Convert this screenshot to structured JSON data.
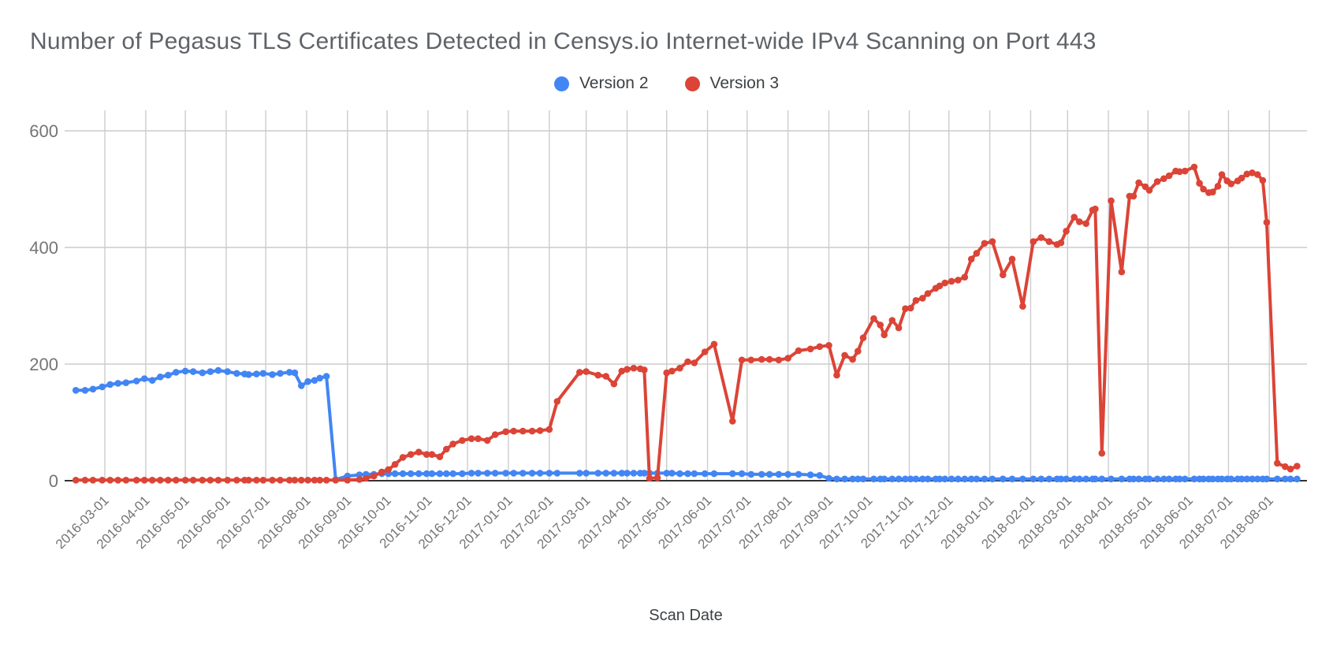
{
  "title": "Number of Pegasus TLS Certificates Detected in Censys.io Internet-wide IPv4 Scanning on Port 443",
  "legend": [
    {
      "label": "Version 2",
      "color": "#4285F4"
    },
    {
      "label": "Version 3",
      "color": "#DB4437"
    }
  ],
  "colors": {
    "gridline": "#cccccc",
    "axis_line": "#333333",
    "tick_label": "#757575",
    "title_text": "#5f6368",
    "axis_title_text": "#3c4043"
  },
  "chart_data": {
    "type": "line",
    "title": "Number of Pegasus TLS Certificates Detected in Censys.io Internet-wide IPv4 Scanning on Port 443",
    "xlabel": "Scan Date",
    "ylabel": "",
    "ylim": [
      0,
      600
    ],
    "yticks": [
      0,
      200,
      400,
      600
    ],
    "grid": true,
    "legend_position": "top-center",
    "xticks": [
      "2016-03-01",
      "2016-04-01",
      "2016-05-01",
      "2016-06-01",
      "2016-07-01",
      "2016-08-01",
      "2016-09-01",
      "2016-10-01",
      "2016-11-01",
      "2016-12-01",
      "2017-01-01",
      "2017-02-01",
      "2017-03-01",
      "2017-04-01",
      "2017-05-01",
      "2017-06-01",
      "2017-07-01",
      "2017-08-01",
      "2017-09-01",
      "2017-10-01",
      "2017-11-01",
      "2017-12-01",
      "2018-01-01",
      "2018-02-01",
      "2018-03-01",
      "2018-04-01",
      "2018-05-01",
      "2018-06-01",
      "2018-07-01",
      "2018-08-01"
    ],
    "x": [
      "2016-02-08",
      "2016-02-15",
      "2016-02-21",
      "2016-02-28",
      "2016-03-05",
      "2016-03-11",
      "2016-03-17",
      "2016-03-25",
      "2016-03-31",
      "2016-04-06",
      "2016-04-12",
      "2016-04-18",
      "2016-04-24",
      "2016-05-01",
      "2016-05-07",
      "2016-05-14",
      "2016-05-20",
      "2016-05-26",
      "2016-06-02",
      "2016-06-09",
      "2016-06-15",
      "2016-06-18",
      "2016-06-24",
      "2016-06-29",
      "2016-07-06",
      "2016-07-12",
      "2016-07-19",
      "2016-07-23",
      "2016-07-28",
      "2016-08-02",
      "2016-08-07",
      "2016-08-11",
      "2016-08-16",
      "2016-08-23",
      "2016-09-01",
      "2016-09-10",
      "2016-09-15",
      "2016-09-21",
      "2016-09-27",
      "2016-10-02",
      "2016-10-07",
      "2016-10-13",
      "2016-10-19",
      "2016-10-25",
      "2016-10-31",
      "2016-11-04",
      "2016-11-10",
      "2016-11-15",
      "2016-11-20",
      "2016-11-27",
      "2016-12-04",
      "2016-12-09",
      "2016-12-16",
      "2016-12-22",
      "2016-12-30",
      "2017-01-05",
      "2017-01-12",
      "2017-01-19",
      "2017-01-25",
      "2017-02-01",
      "2017-02-07",
      "2017-02-24",
      "2017-03-01",
      "2017-03-10",
      "2017-03-16",
      "2017-03-22",
      "2017-03-28",
      "2017-04-01",
      "2017-04-06",
      "2017-04-11",
      "2017-04-14",
      "2017-04-18",
      "2017-04-24",
      "2017-05-01",
      "2017-05-05",
      "2017-05-11",
      "2017-05-17",
      "2017-05-22",
      "2017-05-30",
      "2017-06-06",
      "2017-06-20",
      "2017-06-27",
      "2017-07-04",
      "2017-07-12",
      "2017-07-18",
      "2017-07-25",
      "2017-08-01",
      "2017-08-09",
      "2017-08-18",
      "2017-08-25",
      "2017-09-01",
      "2017-09-07",
      "2017-09-13",
      "2017-09-19",
      "2017-09-23",
      "2017-09-27",
      "2017-10-05",
      "2017-10-10",
      "2017-10-13",
      "2017-10-19",
      "2017-10-24",
      "2017-10-29",
      "2017-11-02",
      "2017-11-06",
      "2017-11-11",
      "2017-11-15",
      "2017-11-21",
      "2017-11-24",
      "2017-11-28",
      "2017-12-03",
      "2017-12-08",
      "2017-12-13",
      "2017-12-18",
      "2017-12-22",
      "2017-12-28",
      "2018-01-03",
      "2018-01-11",
      "2018-01-18",
      "2018-01-26",
      "2018-02-03",
      "2018-02-09",
      "2018-02-15",
      "2018-02-21",
      "2018-02-24",
      "2018-02-28",
      "2018-03-06",
      "2018-03-10",
      "2018-03-15",
      "2018-03-20",
      "2018-03-22",
      "2018-03-27",
      "2018-04-03",
      "2018-04-11",
      "2018-04-17",
      "2018-04-20",
      "2018-04-24",
      "2018-04-29",
      "2018-05-02",
      "2018-05-08",
      "2018-05-13",
      "2018-05-17",
      "2018-05-22",
      "2018-05-25",
      "2018-05-29",
      "2018-06-05",
      "2018-06-09",
      "2018-06-12",
      "2018-06-16",
      "2018-06-19",
      "2018-06-23",
      "2018-06-26",
      "2018-06-30",
      "2018-07-03",
      "2018-07-08",
      "2018-07-11",
      "2018-07-15",
      "2018-07-19",
      "2018-07-23",
      "2018-07-27",
      "2018-07-30",
      "2018-08-07",
      "2018-08-13",
      "2018-08-17",
      "2018-08-22"
    ],
    "series": [
      {
        "name": "Version 2",
        "color": "#4285F4",
        "values": [
          155,
          155,
          157,
          161,
          165,
          167,
          168,
          171,
          175,
          172,
          178,
          181,
          186,
          188,
          187,
          185,
          187,
          189,
          187,
          184,
          183,
          182,
          183,
          184,
          182,
          184,
          186,
          185,
          163,
          170,
          172,
          176,
          179,
          2,
          8,
          10,
          11,
          11,
          12,
          12,
          12,
          12,
          12,
          12,
          12,
          12,
          12,
          12,
          12,
          12,
          13,
          13,
          13,
          13,
          13,
          13,
          13,
          13,
          13,
          13,
          13,
          13,
          13,
          13,
          13,
          13,
          13,
          13,
          13,
          13,
          13,
          13,
          13,
          13,
          13,
          12,
          12,
          12,
          12,
          12,
          12,
          12,
          11,
          11,
          11,
          11,
          11,
          11,
          10,
          9,
          4,
          3,
          3,
          3,
          3,
          3,
          3,
          3,
          3,
          3,
          3,
          3,
          3,
          3,
          3,
          3,
          3,
          3,
          3,
          3,
          3,
          3,
          3,
          3,
          3,
          3,
          3,
          3,
          3,
          3,
          3,
          3,
          3,
          3,
          3,
          3,
          3,
          3,
          3,
          3,
          3,
          3,
          3,
          3,
          3,
          3,
          3,
          3,
          3,
          3,
          3,
          3,
          3,
          3,
          3,
          3,
          3,
          3,
          3,
          3,
          3,
          3,
          3,
          3,
          3,
          3,
          3,
          3,
          3,
          3,
          3,
          3,
          3,
          3
        ]
      },
      {
        "name": "Version 3",
        "color": "#DB4437",
        "values": [
          1,
          1,
          1,
          1,
          1,
          1,
          1,
          1,
          1,
          1,
          1,
          1,
          1,
          1,
          1,
          1,
          1,
          1,
          1,
          1,
          1,
          1,
          1,
          1,
          1,
          1,
          1,
          1,
          1,
          1,
          1,
          1,
          1,
          1,
          1,
          2,
          4,
          8,
          15,
          19,
          28,
          40,
          45,
          49,
          45,
          45,
          41,
          54,
          63,
          69,
          72,
          72,
          69,
          79,
          84,
          85,
          85,
          85,
          86,
          88,
          136,
          186,
          187,
          181,
          179,
          166,
          188,
          191,
          193,
          192,
          190,
          4,
          5,
          185,
          188,
          193,
          204,
          202,
          221,
          234,
          102,
          207,
          207,
          208,
          208,
          207,
          210,
          223,
          226,
          230,
          232,
          181,
          215,
          208,
          222,
          245,
          278,
          267,
          250,
          275,
          262,
          295,
          296,
          309,
          313,
          321,
          330,
          334,
          339,
          342,
          344,
          349,
          380,
          390,
          407,
          410,
          353,
          380,
          299,
          410,
          417,
          410,
          405,
          408,
          428,
          452,
          444,
          441,
          464,
          466,
          47,
          480,
          358,
          488,
          488,
          511,
          504,
          498,
          513,
          518,
          523,
          531,
          530,
          531,
          538,
          510,
          500,
          494,
          495,
          505,
          525,
          514,
          509,
          514,
          519,
          526,
          528,
          525,
          515,
          443,
          30,
          24,
          20,
          25
        ]
      }
    ]
  }
}
